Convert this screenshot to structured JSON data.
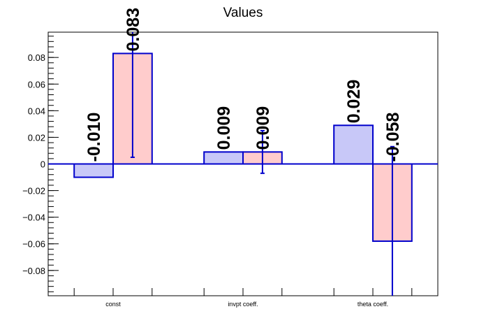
{
  "chart_data": {
    "type": "bar",
    "title": "Values",
    "categories": [
      "const",
      "invpt coeff.",
      "theta coeff."
    ],
    "ylim": [
      -0.099,
      0.099
    ],
    "yticks": [
      -0.08,
      -0.06,
      -0.04,
      -0.02,
      0,
      0.02,
      0.04,
      0.06,
      0.08
    ],
    "ytick_labels": [
      "−0.08",
      "−0.06",
      "−0.04",
      "−0.02",
      "0",
      "0.02",
      "0.04",
      "0.06",
      "0.08"
    ],
    "grid": false,
    "legend": "none",
    "series": [
      {
        "color": "#c8c8f8",
        "values": [
          -0.01,
          0.009,
          0.029
        ],
        "labels": [
          "-0.010",
          "0.009",
          "0.029"
        ],
        "errors": [
          null,
          null,
          null
        ]
      },
      {
        "color": "#ffcccc",
        "values": [
          0.083,
          0.009,
          -0.058
        ],
        "labels": [
          "0.083",
          "0.009",
          "-0.058"
        ],
        "errors": [
          0.078,
          0.016,
          0.071
        ]
      }
    ],
    "bar_stroke_color": "#0000cc",
    "zero_line_color": "#0000cc"
  }
}
